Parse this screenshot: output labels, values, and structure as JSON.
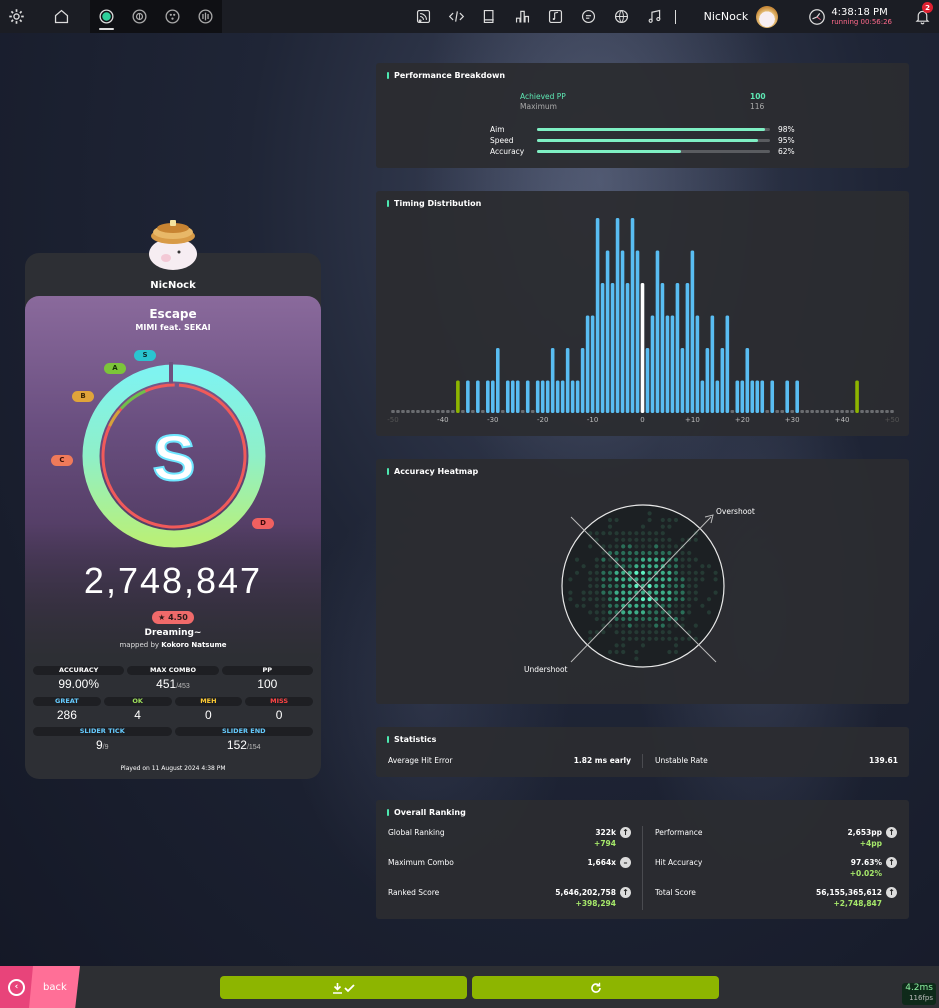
{
  "topbar": {
    "username": "NicNock",
    "time": "4:38:18 PM",
    "running": "running 00:56:26",
    "notifications": "2"
  },
  "player": {
    "name": "NicNock"
  },
  "beatmap": {
    "title": "Escape",
    "artist": "MIMI feat. SEKAI",
    "stars": "★ 4.50",
    "difficulty": "Dreaming~",
    "mapped_by_label": "mapped by",
    "mapper": "Kokoro Natsume"
  },
  "score": {
    "total": "2,748,847",
    "rank": "S",
    "rank_labels": [
      "S",
      "A",
      "B",
      "C",
      "D"
    ],
    "accuracy_fraction": 0.99,
    "stats_row1": [
      {
        "label": "ACCURACY",
        "value": "99.00%",
        "sub": ""
      },
      {
        "label": "MAX COMBO",
        "value": "451",
        "sub": "/453"
      },
      {
        "label": "PP",
        "value": "100",
        "sub": ""
      }
    ],
    "stats_row2": [
      {
        "label": "GREAT",
        "value": "286",
        "color": "#66ccff"
      },
      {
        "label": "OK",
        "value": "4",
        "color": "#9ee05a"
      },
      {
        "label": "MEH",
        "value": "0",
        "color": "#ffcc33"
      },
      {
        "label": "MISS",
        "value": "0",
        "color": "#ff4444"
      }
    ],
    "stats_row3": [
      {
        "label": "SLIDER TICK",
        "value": "9",
        "sub": "/9"
      },
      {
        "label": "SLIDER END",
        "value": "152",
        "sub": "/154"
      }
    ],
    "played": "Played on 11 August 2024 4:38 PM"
  },
  "performance": {
    "title": "Performance Breakdown",
    "achieved_label": "Achieved PP",
    "achieved_value": "100",
    "maximum_label": "Maximum",
    "maximum_value": "116",
    "bars": [
      {
        "label": "Aim",
        "value": "98%",
        "fraction": 0.98
      },
      {
        "label": "Speed",
        "value": "95%",
        "fraction": 0.95
      },
      {
        "label": "Accuracy",
        "value": "62%",
        "fraction": 0.62
      }
    ]
  },
  "timing": {
    "title": "Timing Distribution",
    "axis_labels": [
      "-50",
      "-40",
      "-30",
      "-20",
      "-10",
      "0",
      "+10",
      "+20",
      "+30",
      "+40",
      "+50"
    ]
  },
  "chart_data": {
    "type": "bar",
    "x": [
      -50,
      -49,
      -48,
      -47,
      -46,
      -45,
      -44,
      -43,
      -42,
      -41,
      -40,
      -39,
      -38,
      -37,
      -36,
      -35,
      -34,
      -33,
      -32,
      -31,
      -30,
      -29,
      -28,
      -27,
      -26,
      -25,
      -24,
      -23,
      -22,
      -21,
      -20,
      -19,
      -18,
      -17,
      -16,
      -15,
      -14,
      -13,
      -12,
      -11,
      -10,
      -9,
      -8,
      -7,
      -6,
      -5,
      -4,
      -3,
      -2,
      -1,
      0,
      1,
      2,
      3,
      4,
      5,
      6,
      7,
      8,
      9,
      10,
      11,
      12,
      13,
      14,
      15,
      16,
      17,
      18,
      19,
      20,
      21,
      22,
      23,
      24,
      25,
      26,
      27,
      28,
      29,
      30,
      31,
      32,
      33,
      34,
      35,
      36,
      37,
      38,
      39,
      40,
      41,
      42,
      43,
      44,
      45,
      46,
      47,
      48,
      49,
      50
    ],
    "values": [
      0,
      0,
      0,
      0,
      0,
      0,
      0,
      0,
      0,
      0,
      0,
      0,
      0,
      1,
      0,
      1,
      0,
      1,
      0,
      1,
      1,
      2,
      0,
      1,
      1,
      1,
      0,
      1,
      0,
      1,
      1,
      1,
      2,
      1,
      1,
      2,
      1,
      1,
      2,
      3,
      3,
      6,
      4,
      5,
      4,
      6,
      5,
      4,
      6,
      5,
      4,
      2,
      3,
      5,
      4,
      3,
      3,
      4,
      2,
      4,
      5,
      3,
      1,
      2,
      3,
      1,
      2,
      3,
      0,
      1,
      1,
      2,
      1,
      1,
      1,
      0,
      1,
      0,
      0,
      1,
      0,
      1,
      0,
      0,
      0,
      0,
      0,
      0,
      0,
      0,
      0,
      0,
      0,
      1,
      0,
      0,
      0,
      0,
      0,
      0,
      0
    ],
    "xlim": [
      -50,
      50
    ],
    "highlight_x": [
      -37,
      43
    ],
    "center_x": 0
  },
  "heatmap": {
    "title": "Accuracy Heatmap",
    "overshoot": "Overshoot",
    "undershoot": "Undershoot"
  },
  "statistics": {
    "title": "Statistics",
    "items": [
      {
        "label": "Average Hit Error",
        "value": "1.82 ms early"
      },
      {
        "label": "Unstable Rate",
        "value": "139.61"
      }
    ]
  },
  "ranking": {
    "title": "Overall Ranking",
    "left": [
      {
        "label": "Global Ranking",
        "value": "322k",
        "delta": "+794",
        "trend": "up"
      },
      {
        "label": "Maximum Combo",
        "value": "1,664x",
        "delta": "",
        "trend": "same"
      },
      {
        "label": "Ranked Score",
        "value": "5,646,202,758",
        "delta": "+398,294",
        "trend": "up"
      }
    ],
    "right": [
      {
        "label": "Performance",
        "value": "2,653pp",
        "delta": "+4pp",
        "trend": "up"
      },
      {
        "label": "Hit Accuracy",
        "value": "97.63%",
        "delta": "+0.02%",
        "trend": "up"
      },
      {
        "label": "Total Score",
        "value": "56,155,365,612",
        "delta": "+2,748,847",
        "trend": "up"
      }
    ]
  },
  "bottom": {
    "back_label": "back",
    "perf_ms": "4.2ms",
    "perf_fps": "116fps"
  }
}
